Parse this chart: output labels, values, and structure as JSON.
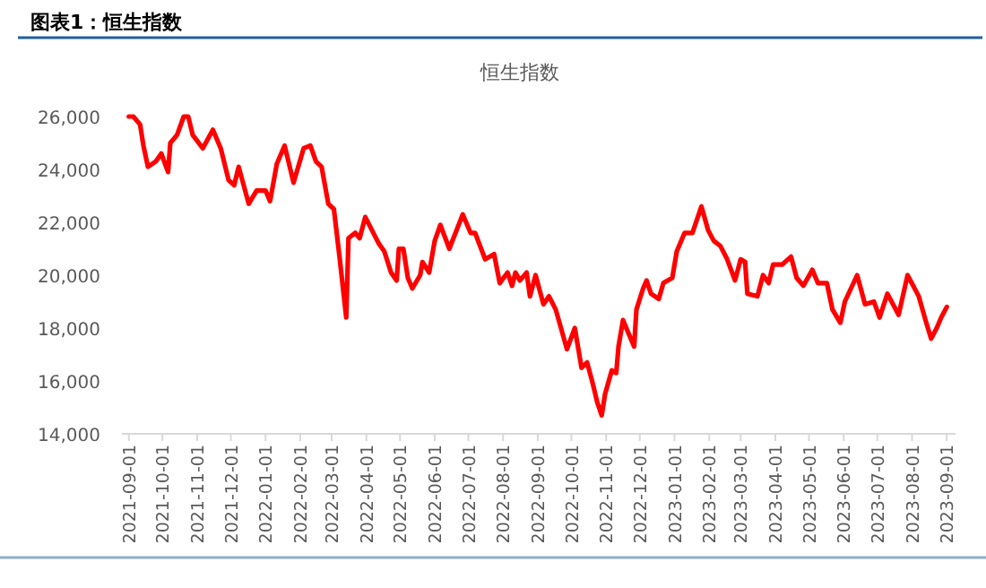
{
  "chart_data": {
    "type": "line",
    "title": "图表1：恒生指数",
    "subtitle": "恒生指数",
    "xlim": [
      "2021-08-29",
      "2023-09-04"
    ],
    "xticks": [
      "2021-09-01",
      "2021-10-01",
      "2021-11-01",
      "2021-12-01",
      "2022-01-01",
      "2022-02-01",
      "2022-03-01",
      "2022-04-01",
      "2022-05-01",
      "2022-06-01",
      "2022-07-01",
      "2022-08-01",
      "2022-09-01",
      "2022-10-01",
      "2022-11-01",
      "2022-12-01",
      "2023-01-01",
      "2023-02-01",
      "2023-03-01",
      "2023-04-01",
      "2023-05-01",
      "2023-06-01",
      "2023-07-01",
      "2023-08-01",
      "2023-09-01"
    ],
    "ylim": [
      14000,
      26000
    ],
    "yticks": [
      {
        "value": 14000,
        "label": "14,000"
      },
      {
        "value": 16000,
        "label": "16,000"
      },
      {
        "value": 18000,
        "label": "18,000"
      },
      {
        "value": 20000,
        "label": "20,000"
      },
      {
        "value": 22000,
        "label": "22,000"
      },
      {
        "value": 24000,
        "label": "24,000"
      },
      {
        "value": 26000,
        "label": "26,000"
      }
    ],
    "grid": false,
    "series": [
      {
        "color": "#ff0000",
        "x": [
          "2021-09-01",
          "2021-09-05",
          "2021-09-11",
          "2021-09-14",
          "2021-09-18",
          "2021-09-25",
          "2021-09-30",
          "2021-10-06",
          "2021-10-08",
          "2021-10-14",
          "2021-10-20",
          "2021-10-24",
          "2021-10-28",
          "2021-11-06",
          "2021-11-15",
          "2021-11-22",
          "2021-11-29",
          "2021-12-04",
          "2021-12-08",
          "2021-12-17",
          "2021-12-24",
          "2022-01-01",
          "2022-01-05",
          "2022-01-11",
          "2022-01-18",
          "2022-01-26",
          "2022-02-04",
          "2022-02-10",
          "2022-02-15",
          "2022-02-20",
          "2022-02-26",
          "2022-03-03",
          "2022-03-08",
          "2022-03-14",
          "2022-03-16",
          "2022-03-22",
          "2022-03-26",
          "2022-03-31",
          "2022-04-06",
          "2022-04-12",
          "2022-04-17",
          "2022-04-23",
          "2022-04-28",
          "2022-04-30",
          "2022-05-04",
          "2022-05-08",
          "2022-05-12",
          "2022-05-19",
          "2022-05-21",
          "2022-05-27",
          "2022-06-01",
          "2022-06-06",
          "2022-06-14",
          "2022-06-26",
          "2022-07-03",
          "2022-07-07",
          "2022-07-16",
          "2022-07-24",
          "2022-07-29",
          "2022-08-05",
          "2022-08-09",
          "2022-08-12",
          "2022-08-16",
          "2022-08-22",
          "2022-08-25",
          "2022-08-30",
          "2022-09-06",
          "2022-09-11",
          "2022-09-17",
          "2022-09-23",
          "2022-09-27",
          "2022-10-04",
          "2022-10-10",
          "2022-10-15",
          "2022-10-20",
          "2022-10-24",
          "2022-10-28",
          "2022-10-31",
          "2022-11-06",
          "2022-11-10",
          "2022-11-12",
          "2022-11-16",
          "2022-11-21",
          "2022-11-26",
          "2022-11-28",
          "2022-12-04",
          "2022-12-07",
          "2022-12-11",
          "2022-12-18",
          "2022-12-22",
          "2022-12-30",
          "2023-01-03",
          "2023-01-10",
          "2023-01-17",
          "2023-01-25",
          "2023-01-31",
          "2023-02-05",
          "2023-02-11",
          "2023-02-17",
          "2023-02-24",
          "2023-03-01",
          "2023-03-05",
          "2023-03-07",
          "2023-03-16",
          "2023-03-21",
          "2023-03-26",
          "2023-03-30",
          "2023-04-07",
          "2023-04-15",
          "2023-04-20",
          "2023-04-26",
          "2023-05-04",
          "2023-05-09",
          "2023-05-17",
          "2023-05-22",
          "2023-05-29",
          "2023-06-02",
          "2023-06-13",
          "2023-06-20",
          "2023-06-28",
          "2023-07-03",
          "2023-07-10",
          "2023-07-20",
          "2023-07-28",
          "2023-08-02",
          "2023-08-07",
          "2023-08-13",
          "2023-08-18",
          "2023-08-23",
          "2023-08-27",
          "2023-09-01"
        ],
        "values": [
          26000,
          26000,
          25700,
          24900,
          24100,
          24300,
          24600,
          23900,
          25000,
          25300,
          26000,
          26000,
          25300,
          24800,
          25500,
          24800,
          23600,
          23400,
          24100,
          22700,
          23200,
          23200,
          22800,
          24200,
          24900,
          23500,
          24800,
          24900,
          24300,
          24100,
          22700,
          22500,
          20700,
          18400,
          21400,
          21600,
          21400,
          22200,
          21700,
          21200,
          20900,
          20100,
          19800,
          21000,
          21000,
          19900,
          19500,
          20000,
          20500,
          20100,
          21300,
          21900,
          21000,
          22300,
          21600,
          21600,
          20600,
          20800,
          19700,
          20100,
          19600,
          20100,
          19800,
          20100,
          19200,
          20000,
          18900,
          19200,
          18700,
          17800,
          17200,
          18000,
          16500,
          16700,
          15900,
          15200,
          14700,
          15500,
          16400,
          16300,
          17300,
          18300,
          17800,
          17300,
          18700,
          19500,
          19800,
          19300,
          19100,
          19700,
          19900,
          20900,
          21600,
          21600,
          22600,
          21700,
          21300,
          21100,
          20600,
          19800,
          20600,
          20500,
          19300,
          19200,
          20000,
          19700,
          20400,
          20400,
          20700,
          19900,
          19600,
          20200,
          19700,
          19700,
          18700,
          18200,
          19000,
          20000,
          18900,
          19000,
          18400,
          19300,
          18500,
          20000,
          19600,
          19200,
          18300,
          17600,
          18000,
          18400,
          18800
        ]
      }
    ]
  }
}
